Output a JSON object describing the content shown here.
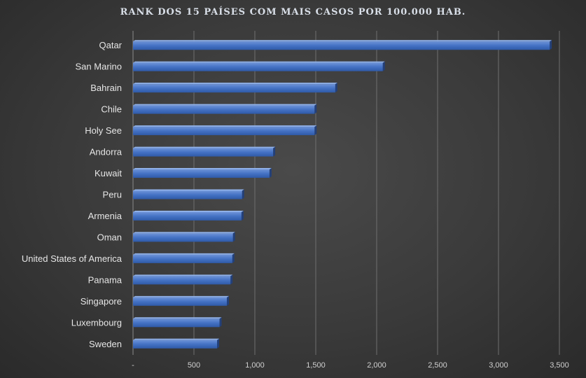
{
  "chart_data": {
    "type": "bar",
    "orientation": "horizontal",
    "title": "RANK DOS 15 PAÍSES COM MAIS CASOS POR 100.000 HAB.",
    "categories": [
      "Qatar",
      "San Marino",
      "Bahrain",
      "Chile",
      "Holy See",
      "Andorra",
      "Kuwait",
      "Peru",
      "Armenia",
      "Oman",
      "United States of America",
      "Panama",
      "Singapore",
      "Luxembourg",
      "Sweden"
    ],
    "values": [
      3420,
      2050,
      1660,
      1490,
      1490,
      1150,
      1120,
      895,
      890,
      820,
      815,
      800,
      770,
      710,
      690
    ],
    "xlim": [
      0,
      3500
    ],
    "xticks": [
      0,
      500,
      1000,
      1500,
      2000,
      2500,
      3000,
      3500
    ],
    "xtick_labels": [
      "-",
      "500",
      "1,000",
      "1,500",
      "2,000",
      "2,500",
      "3,000",
      "3,500"
    ],
    "grid": true,
    "bar_color": "#4472c4"
  }
}
